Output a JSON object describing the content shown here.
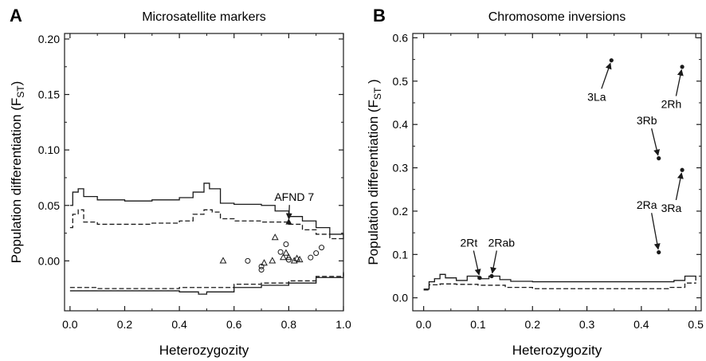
{
  "chart_data": [
    {
      "panel_letter": "A",
      "type": "scatter",
      "title": "Microsatellite markers",
      "xlabel": "Heterozygozity",
      "ylabel": "Population differentiation (F",
      "ylabel_sub": "ST",
      "ylabel_close": ")",
      "xlim": [
        -0.02,
        1.0
      ],
      "ylim": [
        -0.045,
        0.205
      ],
      "xticks": [
        0.0,
        0.2,
        0.4,
        0.6,
        0.8,
        1.0
      ],
      "xtick_labels": [
        "0.0",
        "0.2",
        "0.4",
        "0.6",
        "0.8",
        "1.0"
      ],
      "yticks": [
        0.0,
        0.05,
        0.1,
        0.15,
        0.2
      ],
      "ytick_labels": [
        "0.00",
        "0.05",
        "0.10",
        "0.15",
        "0.20"
      ],
      "series": [
        {
          "marker": "circle",
          "points": [
            [
              0.65,
              0.0
            ],
            [
              0.7,
              -0.005
            ],
            [
              0.7,
              -0.008
            ],
            [
              0.77,
              0.008
            ],
            [
              0.79,
              0.015
            ],
            [
              0.8,
              0.001
            ],
            [
              0.88,
              0.003
            ],
            [
              0.9,
              0.007
            ],
            [
              0.92,
              0.012
            ]
          ]
        },
        {
          "marker": "triangle",
          "points": [
            [
              0.56,
              0.0
            ],
            [
              0.71,
              -0.002
            ],
            [
              0.74,
              0.0
            ],
            [
              0.75,
              0.021
            ],
            [
              0.78,
              0.003
            ],
            [
              0.79,
              0.007
            ],
            [
              0.8,
              0.003
            ],
            [
              0.82,
              0.0
            ],
            [
              0.83,
              0.002
            ],
            [
              0.84,
              0.001
            ]
          ]
        },
        {
          "marker": "filled-triangle",
          "points": [
            [
              0.8,
              0.035
            ]
          ]
        }
      ],
      "upper_solid": [
        [
          0.0,
          0.05
        ],
        [
          0.01,
          0.062
        ],
        [
          0.03,
          0.065
        ],
        [
          0.05,
          0.058
        ],
        [
          0.1,
          0.055
        ],
        [
          0.2,
          0.054
        ],
        [
          0.3,
          0.055
        ],
        [
          0.4,
          0.057
        ],
        [
          0.45,
          0.062
        ],
        [
          0.49,
          0.07
        ],
        [
          0.51,
          0.065
        ],
        [
          0.55,
          0.052
        ],
        [
          0.6,
          0.051
        ],
        [
          0.7,
          0.05
        ],
        [
          0.75,
          0.045
        ],
        [
          0.8,
          0.04
        ],
        [
          0.85,
          0.036
        ],
        [
          0.9,
          0.03
        ],
        [
          0.95,
          0.024
        ],
        [
          1.0,
          0.02
        ]
      ],
      "upper_dashed": [
        [
          0.0,
          0.03
        ],
        [
          0.01,
          0.042
        ],
        [
          0.03,
          0.046
        ],
        [
          0.05,
          0.035
        ],
        [
          0.1,
          0.033
        ],
        [
          0.2,
          0.033
        ],
        [
          0.3,
          0.034
        ],
        [
          0.4,
          0.036
        ],
        [
          0.45,
          0.042
        ],
        [
          0.49,
          0.046
        ],
        [
          0.52,
          0.044
        ],
        [
          0.55,
          0.038
        ],
        [
          0.6,
          0.036
        ],
        [
          0.7,
          0.035
        ],
        [
          0.75,
          0.035
        ],
        [
          0.8,
          0.033
        ],
        [
          0.85,
          0.028
        ],
        [
          0.9,
          0.024
        ],
        [
          0.95,
          0.02
        ],
        [
          1.0,
          0.018
        ]
      ],
      "lower_dashed": [
        [
          0.0,
          -0.024
        ],
        [
          0.1,
          -0.025
        ],
        [
          0.2,
          -0.025
        ],
        [
          0.3,
          -0.025
        ],
        [
          0.4,
          -0.024
        ],
        [
          0.5,
          -0.024
        ],
        [
          0.6,
          -0.021
        ],
        [
          0.7,
          -0.02
        ],
        [
          0.8,
          -0.018
        ],
        [
          0.9,
          -0.014
        ],
        [
          1.0,
          -0.01
        ]
      ],
      "lower_solid": [
        [
          0.0,
          -0.027
        ],
        [
          0.1,
          -0.027
        ],
        [
          0.2,
          -0.027
        ],
        [
          0.3,
          -0.027
        ],
        [
          0.4,
          -0.028
        ],
        [
          0.47,
          -0.03
        ],
        [
          0.5,
          -0.028
        ],
        [
          0.6,
          -0.024
        ],
        [
          0.7,
          -0.022
        ],
        [
          0.8,
          -0.02
        ],
        [
          0.9,
          -0.015
        ],
        [
          1.0,
          -0.011
        ]
      ],
      "annotations": [
        {
          "text": "AFND 7",
          "x": 0.8,
          "y": 0.035
        }
      ]
    },
    {
      "panel_letter": "B",
      "type": "scatter",
      "title": "Chromosome inversions",
      "xlabel": "Heterozygozity",
      "ylabel": "Population differentiation (F",
      "ylabel_sub": "ST",
      "ylabel_close": " )",
      "xlim": [
        -0.02,
        0.51
      ],
      "ylim": [
        -0.03,
        0.61
      ],
      "xticks": [
        0.0,
        0.1,
        0.2,
        0.3,
        0.4,
        0.5
      ],
      "xtick_labels": [
        "0.0",
        "0.1",
        "0.2",
        "0.3",
        "0.4",
        "0.5"
      ],
      "yticks": [
        0.0,
        0.1,
        0.2,
        0.3,
        0.4,
        0.5,
        0.6
      ],
      "ytick_labels": [
        "0.0",
        "0.1",
        "0.2",
        "0.3",
        "0.4",
        "0.5",
        "0.6"
      ],
      "series": [
        {
          "marker": "dot",
          "points": [
            [
              0.345,
              0.548
            ],
            [
              0.475,
              0.533
            ],
            [
              0.432,
              0.322
            ],
            [
              0.475,
              0.295
            ],
            [
              0.432,
              0.105
            ],
            [
              0.103,
              0.046
            ],
            [
              0.125,
              0.05
            ]
          ]
        }
      ],
      "upper_solid": [
        [
          0.0,
          0.02
        ],
        [
          0.01,
          0.037
        ],
        [
          0.02,
          0.044
        ],
        [
          0.03,
          0.054
        ],
        [
          0.04,
          0.046
        ],
        [
          0.06,
          0.04
        ],
        [
          0.08,
          0.05
        ],
        [
          0.1,
          0.044
        ],
        [
          0.12,
          0.05
        ],
        [
          0.14,
          0.042
        ],
        [
          0.16,
          0.038
        ],
        [
          0.2,
          0.037
        ],
        [
          0.3,
          0.037
        ],
        [
          0.4,
          0.037
        ],
        [
          0.46,
          0.04
        ],
        [
          0.48,
          0.05
        ],
        [
          0.5,
          0.04
        ]
      ],
      "lower_dashed": [
        [
          0.0,
          0.018
        ],
        [
          0.01,
          0.03
        ],
        [
          0.03,
          0.032
        ],
        [
          0.06,
          0.031
        ],
        [
          0.1,
          0.029
        ],
        [
          0.15,
          0.024
        ],
        [
          0.2,
          0.021
        ],
        [
          0.3,
          0.021
        ],
        [
          0.4,
          0.021
        ],
        [
          0.45,
          0.024
        ],
        [
          0.48,
          0.034
        ],
        [
          0.5,
          0.033
        ]
      ],
      "annotations": [
        {
          "text": "3La",
          "x": 0.345,
          "y": 0.548
        },
        {
          "text": "2Rh",
          "x": 0.475,
          "y": 0.533
        },
        {
          "text": "3Rb",
          "x": 0.432,
          "y": 0.322
        },
        {
          "text": "3Ra",
          "x": 0.475,
          "y": 0.295
        },
        {
          "text": "2Ra",
          "x": 0.432,
          "y": 0.105
        },
        {
          "text": "2Rt",
          "x": 0.103,
          "y": 0.046
        },
        {
          "text": "2Rab",
          "x": 0.125,
          "y": 0.05
        }
      ]
    }
  ]
}
